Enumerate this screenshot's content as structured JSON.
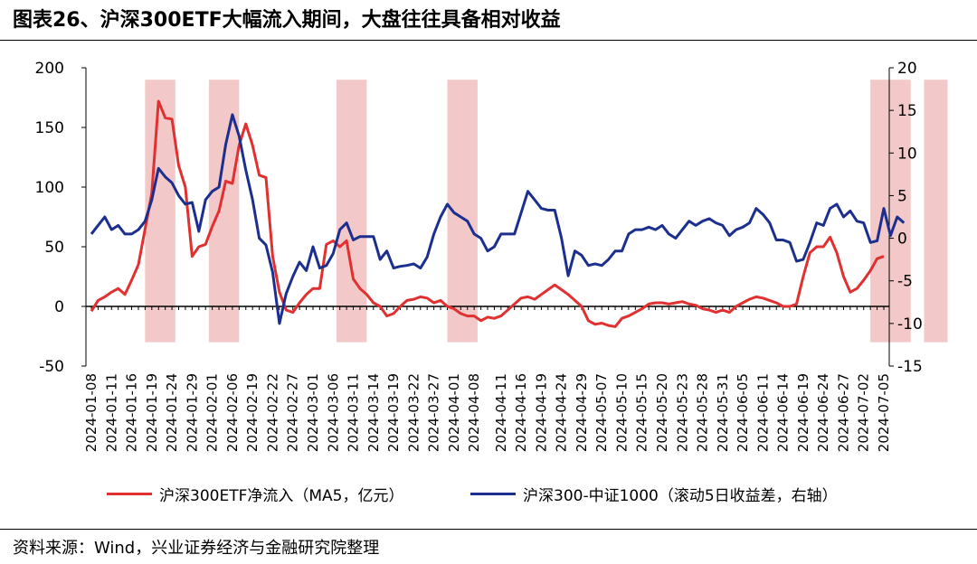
{
  "title": "图表26、沪深300ETF大幅流入期间，大盘往往具备相对收益",
  "source": "资料来源：Wind，兴业证券经济与金融研究院整理",
  "colors": {
    "red": "#e03030",
    "blue": "#1c2f8f",
    "shade": "#f2c8c8"
  },
  "chart_data": {
    "type": "line",
    "title": "",
    "x_ticks": [
      "2024-01-08",
      "2024-01-11",
      "2024-01-16",
      "2024-01-19",
      "2024-01-24",
      "2024-01-29",
      "2024-02-01",
      "2024-02-06",
      "2024-02-19",
      "2024-02-22",
      "2024-02-27",
      "2024-03-01",
      "2024-03-06",
      "2024-03-11",
      "2024-03-14",
      "2024-03-19",
      "2024-03-22",
      "2024-03-27",
      "2024-04-01",
      "2024-04-08",
      "2024-04-11",
      "2024-04-16",
      "2024-04-19",
      "2024-04-24",
      "2024-04-29",
      "2024-05-07",
      "2024-05-10",
      "2024-05-15",
      "2024-05-20",
      "2024-05-23",
      "2024-05-28",
      "2024-05-31",
      "2024-06-05",
      "2024-06-11",
      "2024-06-14",
      "2024-06-19",
      "2024-06-24",
      "2024-06-27",
      "2024-07-02",
      "2024-07-05"
    ],
    "y_left": {
      "ylim": [
        -50,
        200
      ],
      "ticks": [
        -50,
        0,
        50,
        100,
        150,
        200
      ]
    },
    "y_right": {
      "ylim": [
        -15,
        20
      ],
      "ticks": [
        -15,
        -10,
        -5,
        0,
        5,
        10,
        15,
        20
      ]
    },
    "shaded_periods": [
      [
        8.0,
        12.5
      ],
      [
        17.5,
        22.0
      ],
      [
        36.5,
        41.0
      ],
      [
        53.0,
        57.5
      ],
      [
        116.0,
        122.0
      ],
      [
        124.0,
        127.5
      ]
    ],
    "series": [
      {
        "name": "沪深300ETF净流入（MA5，亿元）",
        "axis": "left",
        "color": "#e03030",
        "values": [
          -4,
          5,
          8,
          12,
          15,
          10,
          22,
          35,
          65,
          95,
          172,
          158,
          157,
          118,
          100,
          42,
          50,
          52,
          67,
          80,
          105,
          103,
          135,
          153,
          135,
          110,
          108,
          42,
          12,
          -3,
          -5,
          3,
          10,
          15,
          15,
          52,
          55,
          50,
          55,
          23,
          15,
          10,
          3,
          0,
          -8,
          -6,
          0,
          5,
          6,
          8,
          7,
          3,
          5,
          0,
          -2,
          -6,
          -8,
          -8,
          -12,
          -9,
          -10,
          -8,
          -3,
          2,
          7,
          8,
          6,
          10,
          14,
          18,
          14,
          10,
          5,
          0,
          -12,
          -15,
          -14,
          -16,
          -17,
          -10,
          -8,
          -5,
          -2,
          2,
          3,
          3,
          2,
          3,
          4,
          2,
          1,
          -2,
          -3,
          -5,
          -3,
          -5,
          0,
          3,
          6,
          8,
          7,
          5,
          3,
          0,
          0,
          2,
          25,
          45,
          50,
          50,
          58,
          45,
          25,
          12,
          15,
          22,
          30,
          40,
          42
        ]
      },
      {
        "name": "沪深300-中证1000（滚动5日收益差，右轴）",
        "axis": "right",
        "color": "#1c2f8f",
        "values": [
          0.5,
          1.5,
          2.5,
          1.0,
          1.5,
          0.5,
          0.5,
          1.0,
          2.0,
          4.5,
          8.2,
          7.2,
          6.5,
          5.0,
          4.0,
          4.2,
          0.8,
          4.5,
          5.5,
          6.0,
          11.0,
          14.5,
          12.0,
          8.0,
          4.5,
          0.0,
          -0.8,
          -4.0,
          -10.0,
          -6.5,
          -4.5,
          -2.8,
          -3.8,
          -1.0,
          -3.5,
          -3.2,
          -1.8,
          1.0,
          1.8,
          -0.2,
          0.2,
          0.2,
          0.2,
          -2.5,
          -1.5,
          -3.5,
          -3.3,
          -3.2,
          -3.0,
          -3.5,
          -2.2,
          0.5,
          2.5,
          4.0,
          3.0,
          2.5,
          2.0,
          0.5,
          0.0,
          -1.5,
          -1.0,
          0.5,
          0.5,
          0.5,
          3.0,
          5.5,
          4.5,
          3.5,
          3.3,
          3.3,
          0.0,
          -4.4,
          -1.5,
          -2.0,
          -3.2,
          -3.0,
          -3.2,
          -2.5,
          -1.5,
          -1.5,
          0.5,
          1.0,
          1.0,
          1.3,
          1.0,
          1.5,
          0.5,
          0.0,
          1.0,
          2.0,
          1.5,
          2.0,
          2.3,
          1.8,
          1.5,
          0.3,
          1.0,
          1.3,
          1.8,
          3.5,
          2.8,
          1.8,
          -0.2,
          -0.2,
          -0.5,
          -2.7,
          -2.5,
          -0.5,
          1.8,
          1.5,
          3.5,
          4.0,
          2.5,
          3.2,
          2.0,
          1.8,
          -0.5,
          -0.3,
          3.5,
          0.3,
          2.5,
          1.8
        ]
      }
    ]
  }
}
